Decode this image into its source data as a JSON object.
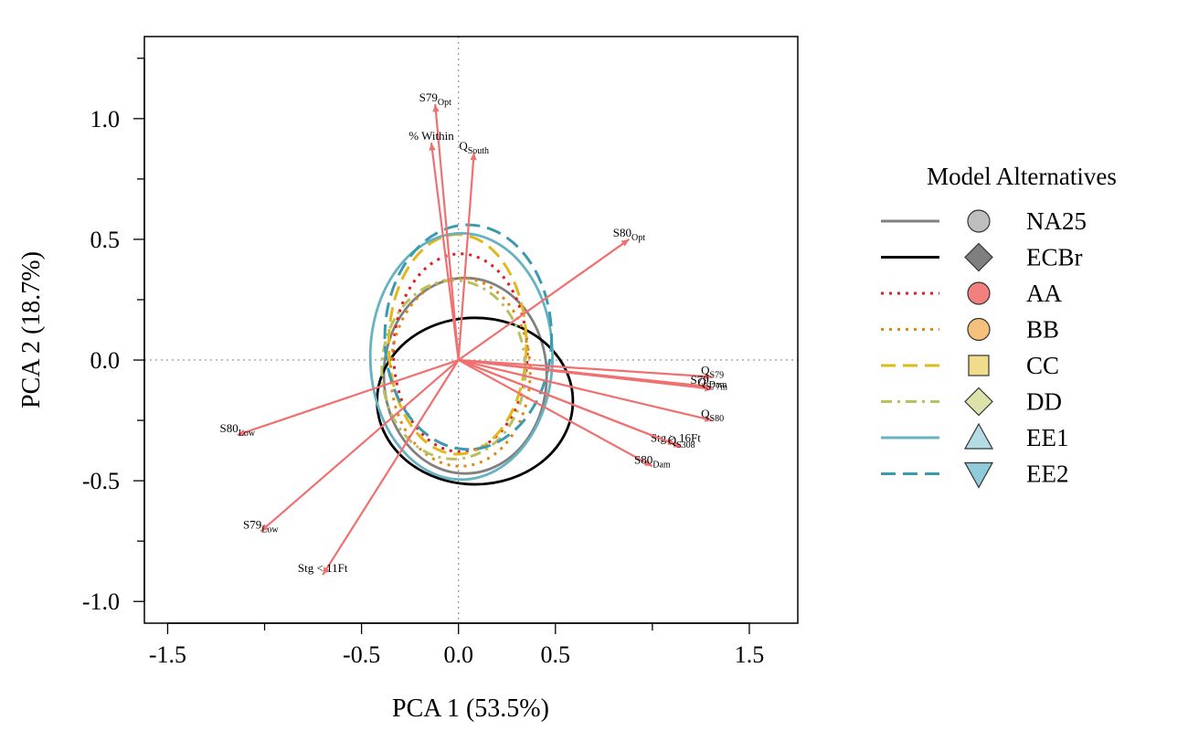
{
  "chart_data": {
    "type": "scatter",
    "subtype": "PCA biplot with confidence ellipses",
    "xlabel": "PCA 1 (53.5%)",
    "ylabel": "PCA 2 (18.7%)",
    "xlim": [
      -1.62,
      1.75
    ],
    "ylim": [
      -1.09,
      1.34
    ],
    "xticks": [
      -1.5,
      -0.5,
      0.0,
      0.5,
      1.5
    ],
    "xtick_labels": [
      "-1.5",
      "-0.5",
      "0.0",
      "0.5",
      "1.5"
    ],
    "xticks_minor": [
      -1.0,
      1.0
    ],
    "yticks": [
      -1.0,
      -0.5,
      0.0,
      0.5,
      1.0
    ],
    "ytick_labels": [
      "-1.0",
      "-0.5",
      "0.0",
      "0.5",
      "1.0"
    ],
    "yticks_minor": [
      -0.75,
      -0.25,
      0.25,
      0.75,
      1.25
    ],
    "reference_lines": {
      "x": 0,
      "y": 0,
      "style": "dotted"
    },
    "arrow_color": "#f07070",
    "loadings": [
      {
        "label": "S79",
        "sub": "Opt",
        "x": -0.12,
        "y": 1.06
      },
      {
        "label": "% Within",
        "sub": "",
        "x": -0.14,
        "y": 0.9
      },
      {
        "label": "Q",
        "sub": "South",
        "x": 0.08,
        "y": 0.86
      },
      {
        "label": "S80",
        "sub": "Opt",
        "x": 0.88,
        "y": 0.5
      },
      {
        "label": "Q",
        "sub": "S79",
        "x": 1.31,
        "y": -0.07
      },
      {
        "label": "S79",
        "sub": "Dam",
        "x": 1.29,
        "y": -0.11
      },
      {
        "label": "Q",
        "sub": "S77m",
        "x": 1.31,
        "y": -0.12
      },
      {
        "label": "Q",
        "sub": "S80",
        "x": 1.31,
        "y": -0.25
      },
      {
        "label": "Stg > 16Ft",
        "sub": "",
        "x": 1.12,
        "y": -0.35
      },
      {
        "label": "Q",
        "sub": "S308",
        "x": 1.15,
        "y": -0.36
      },
      {
        "label": "S80",
        "sub": "Dam",
        "x": 1.0,
        "y": -0.44
      },
      {
        "label": "S80",
        "sub": "Low",
        "x": -1.14,
        "y": -0.31
      },
      {
        "label": "S79",
        "sub": "Low",
        "x": -1.02,
        "y": -0.71
      },
      {
        "label": "Stg < 11Ft",
        "sub": "",
        "x": -0.7,
        "y": -0.89
      }
    ],
    "series": [
      {
        "name": "NA25",
        "color": "#808080",
        "line": "solid",
        "marker": "circle",
        "marker_fill": "#bebebe",
        "center": [
          0.035,
          -0.065
        ],
        "radii": [
          0.42,
          0.405
        ]
      },
      {
        "name": "ECBr",
        "color": "#000000",
        "line": "solid",
        "marker": "diamond",
        "marker_fill": "#7f7f7f",
        "center": [
          0.085,
          -0.17
        ],
        "radii": [
          0.505,
          0.345
        ]
      },
      {
        "name": "AA",
        "color": "#e41a1c",
        "line": "dotted",
        "marker": "circle",
        "marker_fill": "#f28080",
        "center": [
          0.01,
          0.03
        ],
        "radii": [
          0.345,
          0.41
        ]
      },
      {
        "name": "BB",
        "color": "#dd8a14",
        "line": "dotted",
        "marker": "circle",
        "marker_fill": "#f4c07a",
        "center": [
          0.01,
          -0.05
        ],
        "radii": [
          0.36,
          0.39
        ]
      },
      {
        "name": "CC",
        "color": "#e0b81a",
        "line": "dashed",
        "marker": "square",
        "marker_fill": "#f0dc8a",
        "center": [
          -0.005,
          0.065
        ],
        "radii": [
          0.355,
          0.455
        ]
      },
      {
        "name": "DD",
        "color": "#b8c060",
        "line": "dashdot",
        "marker": "diamond",
        "marker_fill": "#dde2aa",
        "center": [
          -0.025,
          -0.04
        ],
        "radii": [
          0.37,
          0.37
        ]
      },
      {
        "name": "EE1",
        "color": "#66b2c2",
        "line": "solid",
        "marker": "triangle-up",
        "marker_fill": "#b4dce4",
        "center": [
          0.015,
          0.015
        ],
        "radii": [
          0.47,
          0.51
        ]
      },
      {
        "name": "EE2",
        "color": "#3a9bb0",
        "line": "dashed",
        "marker": "triangle-down",
        "marker_fill": "#8fcbd9",
        "center": [
          0.05,
          0.095
        ],
        "radii": [
          0.43,
          0.465
        ]
      }
    ],
    "legend": {
      "title": "Model Alternatives",
      "position": "right"
    },
    "grid": false
  }
}
